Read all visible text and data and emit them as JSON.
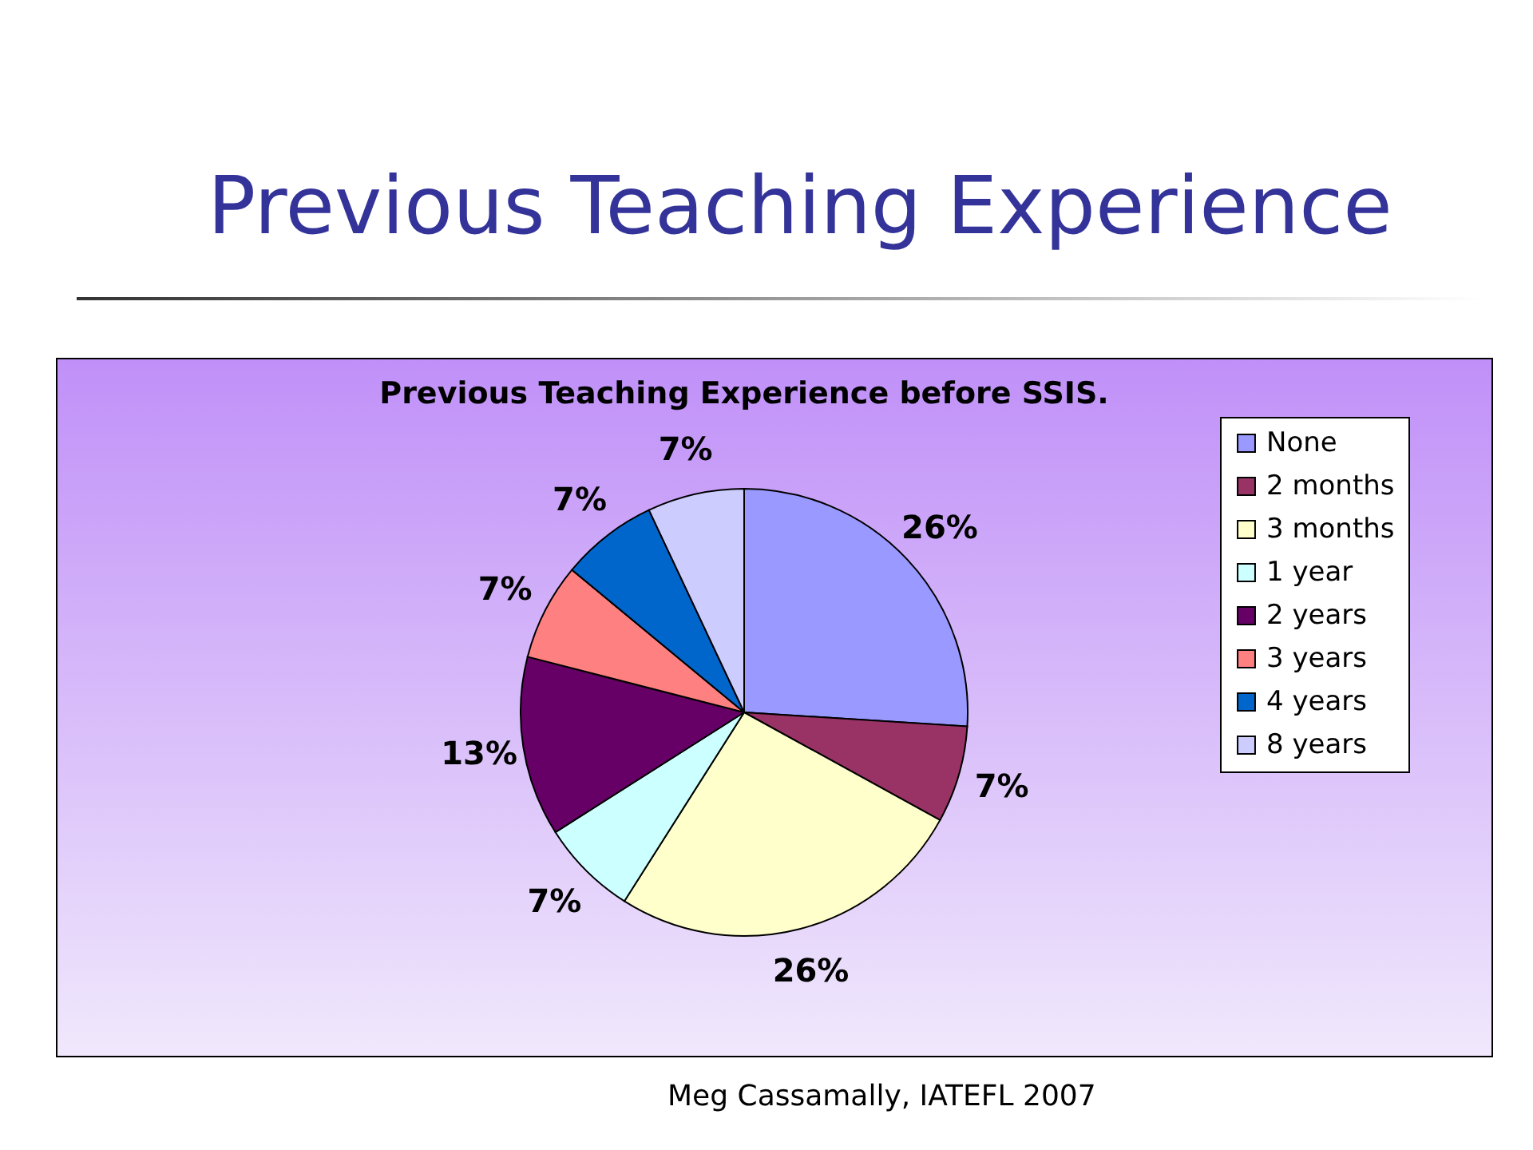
{
  "chart_data": {
    "type": "pie",
    "title": "Previous Teaching Experience",
    "subtitle": "Previous Teaching Experience before SSIS.",
    "categories": [
      "None",
      "2 months",
      "3 months",
      "1 year",
      "2 years",
      "3 years",
      "4 years",
      "8 years"
    ],
    "values": [
      26,
      7,
      26,
      7,
      13,
      7,
      7,
      7
    ],
    "value_labels": [
      "26%",
      "7%",
      "26%",
      "7%",
      "13%",
      "7%",
      "7%",
      "7%"
    ],
    "colors": [
      "#9999ff",
      "#993366",
      "#ffffcc",
      "#ccffff",
      "#660066",
      "#ff8080",
      "#0066cc",
      "#ccccff"
    ],
    "legend": "right",
    "annotations": [
      "Meg Cassamally, IATEFL 2007"
    ]
  }
}
